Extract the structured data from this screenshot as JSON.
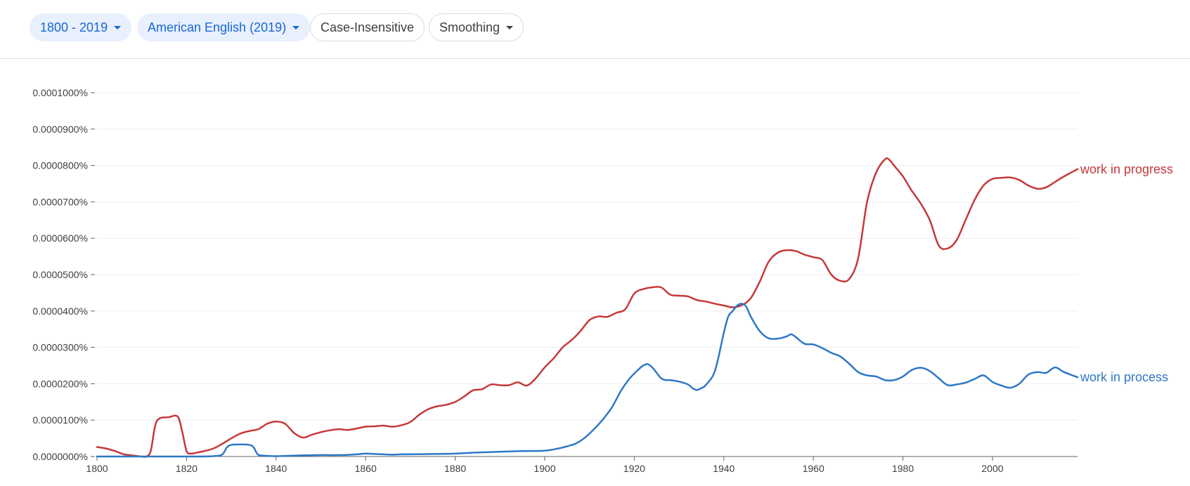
{
  "toolbar": {
    "year_range": "1800 - 2019",
    "corpus": "American English (2019)",
    "case": "Case-Insensitive",
    "smoothing": "Smoothing"
  },
  "colors": {
    "work_in_progress": "#c5393a",
    "work_in_process": "#2e78c7",
    "chip_selected_bg": "#e8f0fe",
    "chip_selected_text": "#1967d2"
  },
  "chart_data": {
    "type": "line",
    "title": "",
    "xlabel": "",
    "ylabel": "",
    "xlim": [
      1800,
      2019
    ],
    "ylim": [
      0,
      0.0001
    ],
    "x_ticks": [
      "1800",
      "1820",
      "1840",
      "1860",
      "1880",
      "1900",
      "1920",
      "1940",
      "1960",
      "1980",
      "2000"
    ],
    "y_ticks": [
      "0.0000000%",
      "0.0000100%",
      "0.0000200%",
      "0.0000300%",
      "0.0000400%",
      "0.0000500%",
      "0.0000600%",
      "0.0000700%",
      "0.0000800%",
      "0.0000900%",
      "0.0001000%"
    ],
    "legend_placement": "right-inline",
    "series": [
      {
        "name": "work in progress",
        "color": "#c5393a",
        "x": [
          1800,
          1802,
          1804,
          1806,
          1808,
          1810,
          1811,
          1812,
          1813,
          1814,
          1816,
          1818,
          1819,
          1820,
          1821,
          1822,
          1824,
          1826,
          1828,
          1830,
          1832,
          1834,
          1836,
          1838,
          1840,
          1842,
          1844,
          1846,
          1848,
          1850,
          1852,
          1854,
          1856,
          1858,
          1860,
          1862,
          1864,
          1866,
          1868,
          1870,
          1872,
          1874,
          1876,
          1878,
          1880,
          1882,
          1884,
          1886,
          1888,
          1890,
          1892,
          1894,
          1896,
          1898,
          1900,
          1902,
          1904,
          1906,
          1908,
          1910,
          1912,
          1914,
          1916,
          1918,
          1920,
          1922,
          1924,
          1926,
          1928,
          1930,
          1932,
          1934,
          1936,
          1938,
          1940,
          1942,
          1944,
          1946,
          1948,
          1950,
          1952,
          1954,
          1956,
          1958,
          1960,
          1962,
          1964,
          1966,
          1968,
          1970,
          1972,
          1974,
          1976,
          1977,
          1978,
          1980,
          1982,
          1984,
          1986,
          1988,
          1990,
          1992,
          1994,
          1996,
          1998,
          2000,
          2002,
          2004,
          2006,
          2008,
          2010,
          2012,
          2014,
          2016,
          2019
        ],
        "y": [
          2.6e-06,
          2.2e-06,
          1.5e-06,
          6e-07,
          3e-07,
          0.0,
          0.0,
          1.5e-06,
          8.5e-06,
          1.05e-05,
          1.08e-05,
          1.1e-05,
          7e-06,
          1.5e-06,
          8e-07,
          1e-06,
          1.5e-06,
          2.2e-06,
          3.5e-06,
          5e-06,
          6.3e-06,
          7e-06,
          7.5e-06,
          9e-06,
          9.6e-06,
          9e-06,
          6.5e-06,
          5.2e-06,
          6e-06,
          6.7e-06,
          7.2e-06,
          7.5e-06,
          7.3e-06,
          7.7e-06,
          8.2e-06,
          8.3e-06,
          8.5e-06,
          8.2e-06,
          8.6e-06,
          9.5e-06,
          1.15e-05,
          1.3e-05,
          1.38e-05,
          1.42e-05,
          1.5e-05,
          1.65e-05,
          1.82e-05,
          1.85e-05,
          1.98e-05,
          1.96e-05,
          1.96e-05,
          2.04e-05,
          1.95e-05,
          2.15e-05,
          2.45e-05,
          2.7e-05,
          3e-05,
          3.2e-05,
          3.45e-05,
          3.75e-05,
          3.85e-05,
          3.84e-05,
          3.95e-05,
          4.05e-05,
          4.48e-05,
          4.6e-05,
          4.65e-05,
          4.65e-05,
          4.45e-05,
          4.42e-05,
          4.4e-05,
          4.3e-05,
          4.26e-05,
          4.2e-05,
          4.15e-05,
          4.1e-05,
          4.16e-05,
          4.35e-05,
          4.8e-05,
          5.35e-05,
          5.6e-05,
          5.67e-05,
          5.65e-05,
          5.55e-05,
          5.48e-05,
          5.4e-05,
          5e-05,
          4.83e-05,
          4.88e-05,
          5.45e-05,
          7e-05,
          7.8e-05,
          8.17e-05,
          8.15e-05,
          8e-05,
          7.7e-05,
          7.3e-05,
          6.95e-05,
          6.5e-05,
          5.8e-05,
          5.72e-05,
          5.95e-05,
          6.5e-05,
          7.05e-05,
          7.45e-05,
          7.63e-05,
          7.66e-05,
          7.67e-05,
          7.6e-05,
          7.45e-05,
          7.36e-05,
          7.4e-05,
          7.55e-05,
          7.7e-05,
          7.9e-05
        ]
      },
      {
        "name": "work in process",
        "color": "#2e78c7",
        "x": [
          1800,
          1820,
          1826,
          1828,
          1829,
          1830,
          1832,
          1834,
          1835,
          1836,
          1838,
          1840,
          1845,
          1850,
          1855,
          1858,
          1860,
          1862,
          1864,
          1866,
          1868,
          1870,
          1875,
          1880,
          1885,
          1890,
          1895,
          1900,
          1903,
          1905,
          1907,
          1909,
          1911,
          1913,
          1915,
          1917,
          1919,
          1921,
          1922,
          1923,
          1924,
          1925,
          1926,
          1927,
          1928,
          1930,
          1932,
          1933,
          1934,
          1935,
          1936,
          1938,
          1940,
          1941,
          1942,
          1943,
          1944,
          1945,
          1946,
          1948,
          1950,
          1952,
          1954,
          1955,
          1956,
          1958,
          1960,
          1962,
          1964,
          1966,
          1968,
          1970,
          1972,
          1974,
          1976,
          1978,
          1980,
          1982,
          1984,
          1986,
          1988,
          1990,
          1992,
          1994,
          1996,
          1998,
          2000,
          2002,
          2004,
          2006,
          2008,
          2010,
          2012,
          2014,
          2016,
          2019
        ],
        "y": [
          0.0,
          0.0,
          1e-07,
          6e-07,
          2.5e-06,
          3.2e-06,
          3.3e-06,
          3.2e-06,
          2.5e-06,
          5e-07,
          2e-07,
          1e-07,
          3e-07,
          4e-07,
          4e-07,
          6e-07,
          8e-07,
          7e-07,
          6e-07,
          5e-07,
          6e-07,
          6e-07,
          7e-07,
          8e-07,
          1.1e-06,
          1.3e-06,
          1.5e-06,
          1.6e-06,
          2.2e-06,
          2.8e-06,
          3.6e-06,
          5.2e-06,
          7.5e-06,
          1.02e-05,
          1.35e-05,
          1.8e-05,
          2.15e-05,
          2.4e-05,
          2.5e-05,
          2.54e-05,
          2.45e-05,
          2.3e-05,
          2.15e-05,
          2.1e-05,
          2.1e-05,
          2.06e-05,
          1.98e-05,
          1.88e-05,
          1.83e-05,
          1.88e-05,
          1.97e-05,
          2.35e-05,
          3.4e-05,
          3.85e-05,
          4e-05,
          4.15e-05,
          4.2e-05,
          4.12e-05,
          3.85e-05,
          3.45e-05,
          3.25e-05,
          3.24e-05,
          3.3e-05,
          3.36e-05,
          3.29e-05,
          3.1e-05,
          3.08e-05,
          2.98e-05,
          2.85e-05,
          2.75e-05,
          2.55e-05,
          2.32e-05,
          2.23e-05,
          2.2e-05,
          2.1e-05,
          2.1e-05,
          2.2e-05,
          2.38e-05,
          2.44e-05,
          2.35e-05,
          2.15e-05,
          1.96e-05,
          1.98e-05,
          2.03e-05,
          2.13e-05,
          2.23e-05,
          2.05e-05,
          1.95e-05,
          1.89e-05,
          2e-05,
          2.25e-05,
          2.32e-05,
          2.3e-05,
          2.45e-05,
          2.32e-05,
          2.18e-05
        ]
      }
    ]
  }
}
